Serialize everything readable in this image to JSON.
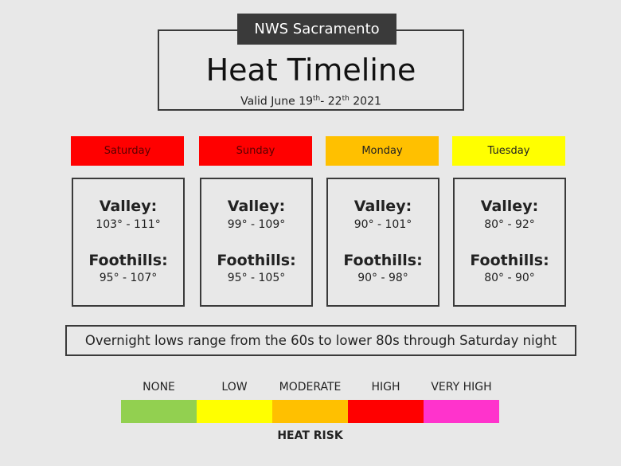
{
  "header": {
    "org": "NWS Sacramento",
    "title": "Heat Timeline",
    "valid": {
      "prefix": "Valid June 19",
      "sup1": "th",
      "mid": "- 22",
      "sup2": "th",
      "suffix": " 2021"
    }
  },
  "days": [
    {
      "name": "Saturday",
      "color": "#ff0000",
      "text_color": "#5a0000",
      "valley_label": "Valley:",
      "valley": "103° - 111°",
      "foothills_label": "Foothills:",
      "foothills": "95° - 107°"
    },
    {
      "name": "Sunday",
      "color": "#ff0000",
      "text_color": "#5a0000",
      "valley_label": "Valley:",
      "valley": "99° - 109°",
      "foothills_label": "Foothills:",
      "foothills": "95° - 105°"
    },
    {
      "name": "Monday",
      "color": "#ffc000",
      "text_color": "#222222",
      "valley_label": "Valley:",
      "valley": "90° - 101°",
      "foothills_label": "Foothills:",
      "foothills": "90° - 98°"
    },
    {
      "name": "Tuesday",
      "color": "#ffff00",
      "text_color": "#222222",
      "valley_label": "Valley:",
      "valley": "80° - 92°",
      "foothills_label": "Foothills:",
      "foothills": "80° - 90°"
    }
  ],
  "note": "Overnight lows range from the 60s to lower 80s through Saturday night",
  "legend": {
    "title": "HEAT RISK",
    "levels": [
      {
        "label": "NONE",
        "color": "#92d050"
      },
      {
        "label": "LOW",
        "color": "#ffff00"
      },
      {
        "label": "MODERATE",
        "color": "#ffc000"
      },
      {
        "label": "HIGH",
        "color": "#ff0000"
      },
      {
        "label": "VERY HIGH",
        "color": "#ff33cc"
      }
    ]
  }
}
